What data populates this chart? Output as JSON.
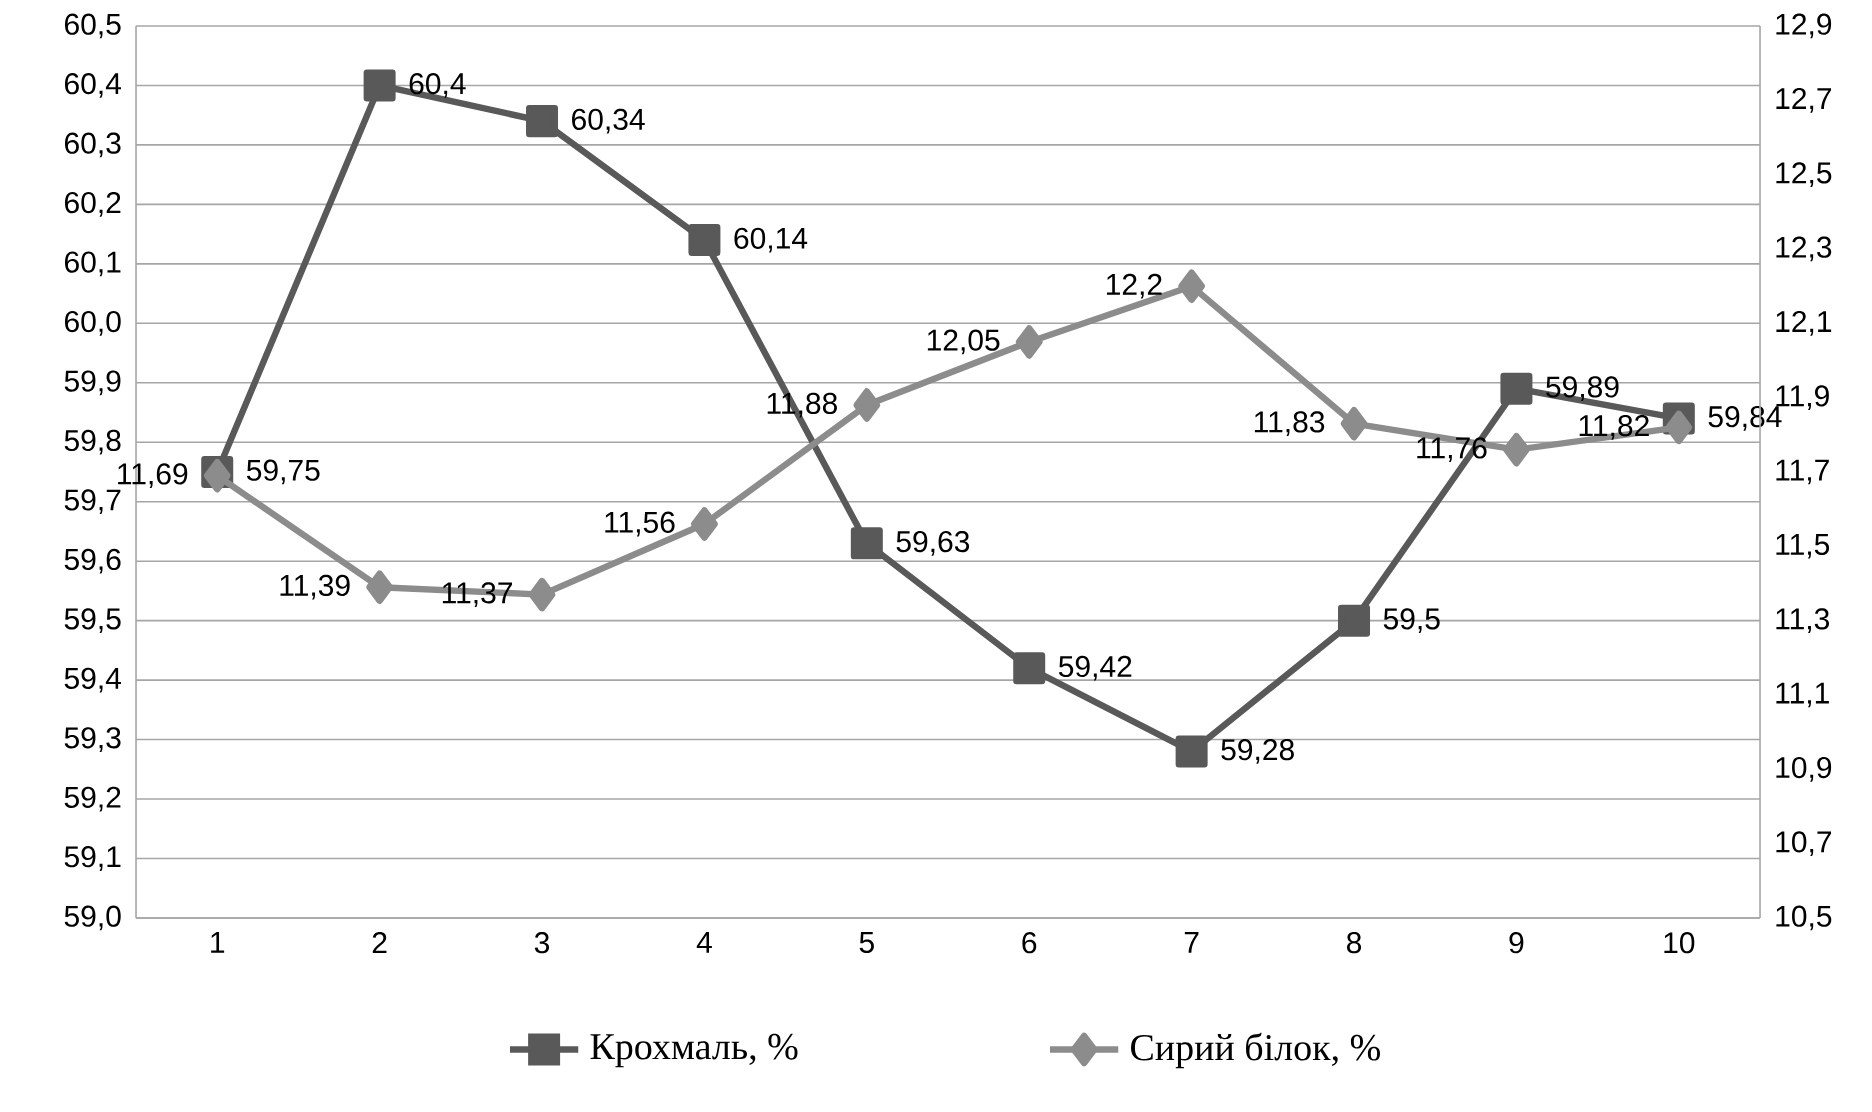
{
  "chart_data": {
    "type": "line",
    "categories": [
      "1",
      "2",
      "3",
      "4",
      "5",
      "6",
      "7",
      "8",
      "9",
      "10"
    ],
    "series": [
      {
        "name": "Крохмаль, %",
        "color": "#595959",
        "marker": "square",
        "values": [
          59.75,
          60.4,
          60.34,
          60.14,
          59.63,
          59.42,
          59.28,
          59.5,
          59.89,
          59.84
        ],
        "value_labels": [
          "59,75",
          "60,4",
          "60,34",
          "60,14",
          "59,63",
          "59,42",
          "59,28",
          "59,5",
          "59,89",
          "59,84"
        ]
      },
      {
        "name": "Сирий білок, %",
        "color": "#8c8c8c",
        "marker": "diamond",
        "axis": "y2",
        "values": [
          11.69,
          11.39,
          11.37,
          11.56,
          11.88,
          12.05,
          12.2,
          11.83,
          11.76,
          11.82
        ],
        "value_labels": [
          "11,69",
          "11,39",
          "11,37",
          "11,56",
          "11,88",
          "12,05",
          "12,2",
          "11,83",
          "11,76",
          "11,82"
        ]
      }
    ],
    "ylim": [
      59.0,
      60.5
    ],
    "yticks": [
      {
        "value": 59.0,
        "label": "59,0"
      },
      {
        "value": 59.1,
        "label": "59,1"
      },
      {
        "value": 59.2,
        "label": "59,2"
      },
      {
        "value": 59.3,
        "label": "59,3"
      },
      {
        "value": 59.4,
        "label": "59,4"
      },
      {
        "value": 59.5,
        "label": "59,5"
      },
      {
        "value": 59.6,
        "label": "59,6"
      },
      {
        "value": 59.7,
        "label": "59,7"
      },
      {
        "value": 59.8,
        "label": "59,8"
      },
      {
        "value": 59.9,
        "label": "59,9"
      },
      {
        "value": 60.0,
        "label": "60,0"
      },
      {
        "value": 60.1,
        "label": "60,1"
      },
      {
        "value": 60.2,
        "label": "60,2"
      },
      {
        "value": 60.3,
        "label": "60,3"
      },
      {
        "value": 60.4,
        "label": "60,4"
      },
      {
        "value": 60.5,
        "label": "60,5"
      }
    ],
    "y2lim": [
      10.5,
      12.9
    ],
    "y2ticks": [
      {
        "value": 10.5,
        "label": "10,5"
      },
      {
        "value": 10.7,
        "label": "10,7"
      },
      {
        "value": 10.9,
        "label": "10,9"
      },
      {
        "value": 11.1,
        "label": "11,1"
      },
      {
        "value": 11.3,
        "label": "11,3"
      },
      {
        "value": 11.5,
        "label": "11,5"
      },
      {
        "value": 11.7,
        "label": "11,7"
      },
      {
        "value": 11.9,
        "label": "11,9"
      },
      {
        "value": 12.1,
        "label": "12,1"
      },
      {
        "value": 12.3,
        "label": "12,3"
      },
      {
        "value": 12.5,
        "label": "12,5"
      },
      {
        "value": 12.7,
        "label": "12,7"
      },
      {
        "value": 12.9,
        "label": "12,9"
      }
    ],
    "grid": "y",
    "legend": "bottom",
    "line_style": "solid"
  }
}
